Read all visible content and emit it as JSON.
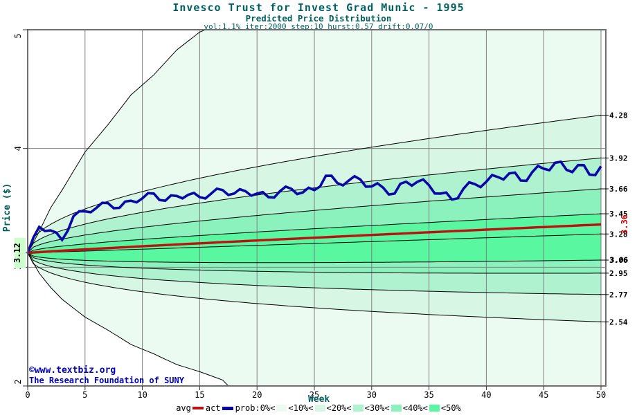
{
  "header": {
    "title": "Invesco Trust for Invest Grad Munic - 1995",
    "subtitle": "Predicted Price Distribution",
    "params": "vol:1.1% iter:2000 step:10 hurst:0.57 drift:0.07/0"
  },
  "watermark": {
    "line1": "©www.textbiz.org",
    "line2": "The Research Foundation of SUNY"
  },
  "axes": {
    "x_label": "Week",
    "y_label": "Price ($)",
    "x_ticks": [
      "0",
      "5",
      "10",
      "15",
      "20",
      "25",
      "30",
      "35",
      "40",
      "45",
      "50"
    ],
    "y_ticks": [
      "2",
      "3",
      "4",
      "5"
    ],
    "start_price_label": "3.12",
    "right_labels": [
      "4.28",
      "3.92",
      "3.66",
      "3.45",
      "3.28",
      "3.06",
      "2.95",
      "2.77",
      "2.54"
    ],
    "avg_end_label": "3.36"
  },
  "legend": {
    "avg_label": "avg",
    "act_label": "act",
    "prob_texts": [
      "prob:0%<",
      "<10%<",
      "<20%<",
      "<30%<",
      "<40%<",
      "<50%"
    ],
    "prob_swatches": [
      "band_0",
      "band_10",
      "band_20",
      "band_30",
      "band_50"
    ]
  },
  "colors": {
    "band_0": "#ecfbf1",
    "band_10": "#d7f7e4",
    "band_20": "#aff2cf",
    "band_30": "#8cf2bd",
    "band_50": "#58f7a0",
    "act": "#0808a8",
    "avg": "#bb1111",
    "boundary": "#000000",
    "grid": "#7f7f7f",
    "frame": "#6f6f6f",
    "teal": "#015f5f",
    "tick_text": "#000000",
    "start_highlight": "#ccffcc",
    "avg_label_red": "#cc0000",
    "watermark_blue": "#0000b8"
  },
  "chart_data": {
    "type": "line",
    "title": "Invesco Trust for Invest Grad Munic - 1995",
    "subtitle": "Predicted Price Distribution",
    "xlabel": "Week",
    "ylabel": "Price ($)",
    "xlim": [
      0,
      50
    ],
    "ylim": [
      2,
      5
    ],
    "grid": true,
    "legend_position": "bottom",
    "start_price": 3.12,
    "median_end": 3.28,
    "avg_line": {
      "start": 3.12,
      "end": 3.36,
      "shape_exponent": 0.9
    },
    "spread_exponent": 0.45,
    "boundary_ends": [
      4.28,
      3.92,
      3.66,
      3.45,
      3.28,
      3.06,
      2.95,
      2.77,
      2.54
    ],
    "fills": [
      [
        "env_max",
        4.28,
        "band_0"
      ],
      [
        4.28,
        3.92,
        "band_10"
      ],
      [
        3.92,
        3.66,
        "band_20"
      ],
      [
        3.66,
        3.45,
        "band_30"
      ],
      [
        3.45,
        3.06,
        "band_50"
      ],
      [
        3.06,
        2.95,
        "band_30"
      ],
      [
        2.95,
        2.77,
        "band_20"
      ],
      [
        2.77,
        2.54,
        "band_10"
      ],
      [
        2.54,
        "env_min",
        "band_0"
      ]
    ],
    "envelope_max_points": [
      [
        0,
        3.12
      ],
      [
        1,
        3.3
      ],
      [
        2,
        3.5
      ],
      [
        3,
        3.65
      ],
      [
        5,
        3.97
      ],
      [
        7,
        4.2
      ],
      [
        9,
        4.45
      ],
      [
        11,
        4.62
      ],
      [
        13,
        4.83
      ],
      [
        15,
        4.98
      ],
      [
        15.5,
        5.0
      ],
      [
        50,
        5.0
      ]
    ],
    "envelope_min_points": [
      [
        0,
        3.12
      ],
      [
        1,
        2.95
      ],
      [
        2,
        2.83
      ],
      [
        3,
        2.73
      ],
      [
        5,
        2.58
      ],
      [
        7,
        2.47
      ],
      [
        9,
        2.35
      ],
      [
        11,
        2.27
      ],
      [
        13,
        2.18
      ],
      [
        15,
        2.12
      ],
      [
        17,
        2.05
      ],
      [
        17.5,
        2.0
      ],
      [
        50,
        2.0
      ]
    ],
    "act_series_weekly": [
      3.12,
      3.34,
      3.31,
      3.23,
      3.43,
      3.47,
      3.5,
      3.54,
      3.5,
      3.56,
      3.58,
      3.62,
      3.56,
      3.6,
      3.61,
      3.59,
      3.62,
      3.65,
      3.62,
      3.64,
      3.62,
      3.59,
      3.64,
      3.66,
      3.63,
      3.65,
      3.77,
      3.71,
      3.73,
      3.74,
      3.68,
      3.67,
      3.62,
      3.72,
      3.72,
      3.69,
      3.62,
      3.57,
      3.66,
      3.7,
      3.72,
      3.76,
      3.79,
      3.73,
      3.8,
      3.83,
      3.88,
      3.82,
      3.86,
      3.78,
      3.85
    ]
  }
}
